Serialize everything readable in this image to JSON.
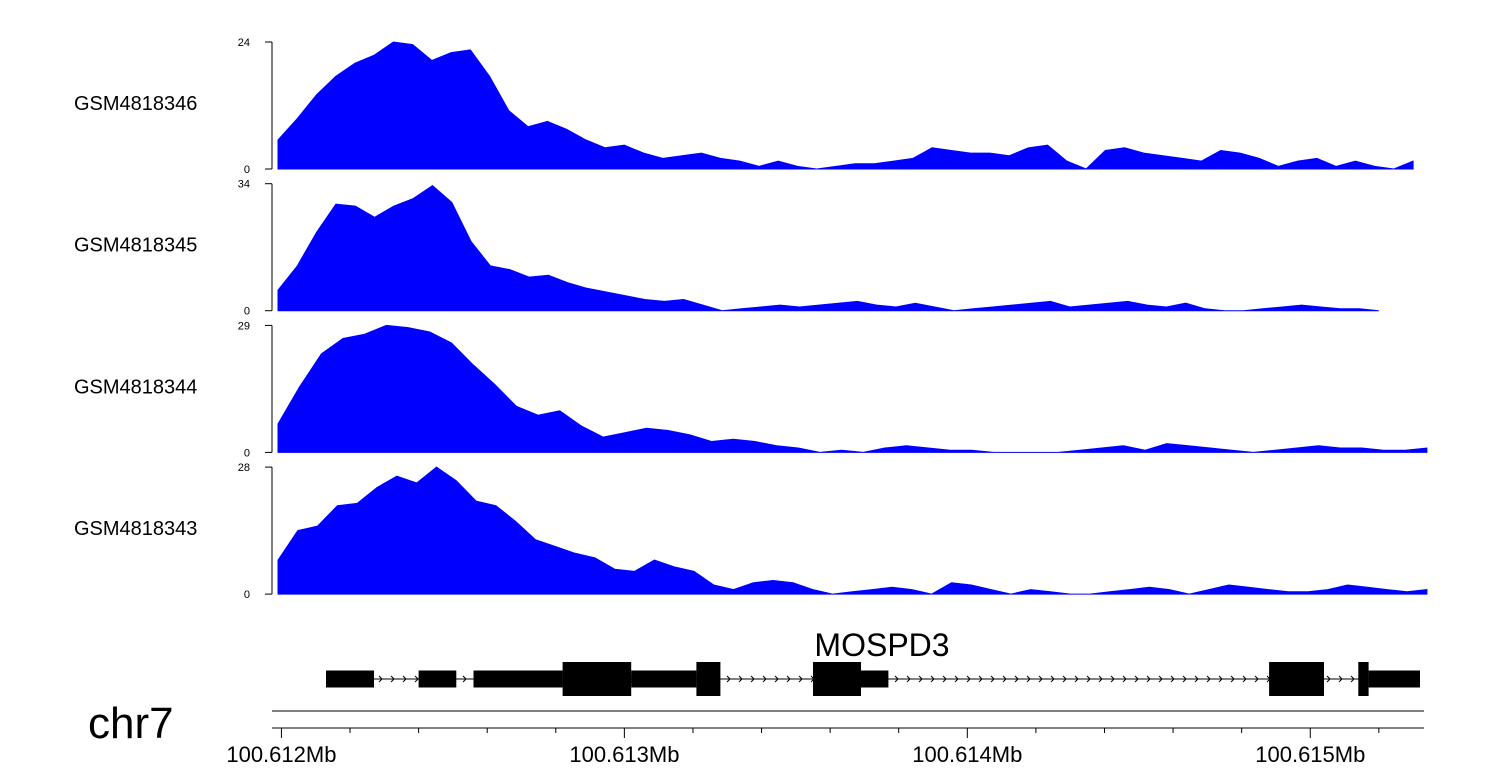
{
  "chart_data": {
    "type": "area",
    "chromosome": "chr7",
    "xlim": [
      100.61199,
      100.61532
    ],
    "x_ticks": [
      {
        "value": 100.612,
        "label": "100.612Mb"
      },
      {
        "value": 100.613,
        "label": "100.613Mb"
      },
      {
        "value": 100.614,
        "label": "100.614Mb"
      },
      {
        "value": 100.615,
        "label": "100.615Mb"
      }
    ],
    "x_minor_ticks": [
      100.6122,
      100.6124,
      100.6126,
      100.6128,
      100.6132,
      100.6134,
      100.6136,
      100.6138,
      100.6142,
      100.6144,
      100.6146,
      100.6148,
      100.6152
    ],
    "color": "#0000ff",
    "tracks": [
      {
        "name": "GSM4818346",
        "ylim": [
          0,
          24
        ],
        "y_ticks": [
          "0",
          "24"
        ],
        "x_end": 100.6153,
        "values": [
          5.5,
          9.5,
          14,
          17.5,
          20,
          21.5,
          24,
          23.5,
          20.5,
          22,
          22.5,
          17.5,
          11,
          8,
          9,
          7.5,
          5.5,
          4,
          4.5,
          3,
          2,
          2.5,
          3,
          2,
          1.5,
          0.5,
          1.5,
          0.5,
          0,
          0.5,
          1,
          1,
          1.5,
          2,
          4,
          3.5,
          3,
          3,
          2.5,
          4,
          4.5,
          1.5,
          0,
          3.5,
          4,
          3,
          2.5,
          2,
          1.5,
          3.5,
          3,
          2,
          0.5,
          1.5,
          2,
          0.5,
          1.5,
          0.5,
          0,
          1.5
        ]
      },
      {
        "name": "GSM4818345",
        "ylim": [
          0,
          34
        ],
        "y_ticks": [
          "0",
          "34"
        ],
        "x_end": 100.6152,
        "values": [
          5.5,
          12,
          21,
          28.5,
          28,
          25,
          28,
          30,
          33.5,
          29,
          18.5,
          12,
          11,
          9,
          9.5,
          7.5,
          6,
          5,
          4,
          3,
          2.5,
          3,
          1.5,
          0,
          0.5,
          1,
          1.5,
          1,
          1.5,
          2,
          2.5,
          1.5,
          1,
          2,
          1,
          0,
          0.5,
          1,
          1.5,
          2,
          2.5,
          1,
          1.5,
          2,
          2.5,
          1.5,
          1,
          2,
          0.5,
          0,
          0,
          0.5,
          1,
          1.5,
          1,
          0.5,
          0.5,
          0
        ]
      },
      {
        "name": "GSM4818344",
        "ylim": [
          0,
          29
        ],
        "y_ticks": [
          "0",
          "29"
        ],
        "x_end": 100.61534,
        "values": [
          6.5,
          15,
          22.5,
          26,
          27,
          29,
          28.5,
          27.5,
          25,
          20,
          15.5,
          10.5,
          8.5,
          9.5,
          6,
          3.5,
          4.5,
          5.5,
          5,
          4,
          2.5,
          3,
          2.5,
          1.5,
          1,
          0,
          0.5,
          0,
          1,
          1.5,
          1,
          0.5,
          0.5,
          0,
          0,
          0,
          0,
          0.5,
          1,
          1.5,
          0.5,
          2,
          1.5,
          1,
          0.5,
          0,
          0.5,
          1,
          1.5,
          1,
          1,
          0.5,
          0.5,
          1
        ]
      },
      {
        "name": "GSM4818343",
        "ylim": [
          0,
          28
        ],
        "y_ticks": [
          "0",
          "28"
        ],
        "x_end": 100.61534,
        "values": [
          7.5,
          14,
          15,
          19.5,
          20,
          23.5,
          26,
          24.5,
          28,
          25,
          20.5,
          19.5,
          16,
          12,
          10.5,
          9,
          8,
          5.5,
          5,
          7.5,
          6,
          5,
          2,
          1,
          2.5,
          3,
          2.5,
          1,
          0,
          0.5,
          1,
          1.5,
          1,
          0,
          2.5,
          2,
          1,
          0,
          1,
          0.5,
          0,
          0,
          0.5,
          1,
          1.5,
          1,
          0,
          1,
          2,
          1.5,
          1,
          0.5,
          0.5,
          1,
          2,
          1.5,
          1,
          0.5,
          1
        ]
      }
    ],
    "gene": {
      "name": "MOSPD3",
      "strand": "+",
      "start": 100.61213,
      "end": 100.61532,
      "exons": [
        {
          "start": 100.61213,
          "end": 100.61227,
          "thick": false
        },
        {
          "start": 100.6124,
          "end": 100.61251,
          "thick": false
        },
        {
          "start": 100.61256,
          "end": 100.61282,
          "thick": false
        },
        {
          "start": 100.61282,
          "end": 100.61302,
          "thick": true
        },
        {
          "start": 100.61302,
          "end": 100.61321,
          "thick": false
        },
        {
          "start": 100.61321,
          "end": 100.61328,
          "thick": true
        },
        {
          "start": 100.61355,
          "end": 100.61369,
          "thick": true
        },
        {
          "start": 100.61369,
          "end": 100.61377,
          "thick": false
        },
        {
          "start": 100.61488,
          "end": 100.61504,
          "thick": true
        },
        {
          "start": 100.61514,
          "end": 100.61517,
          "thick": true
        },
        {
          "start": 100.61517,
          "end": 100.61532,
          "thick": false
        }
      ]
    }
  }
}
